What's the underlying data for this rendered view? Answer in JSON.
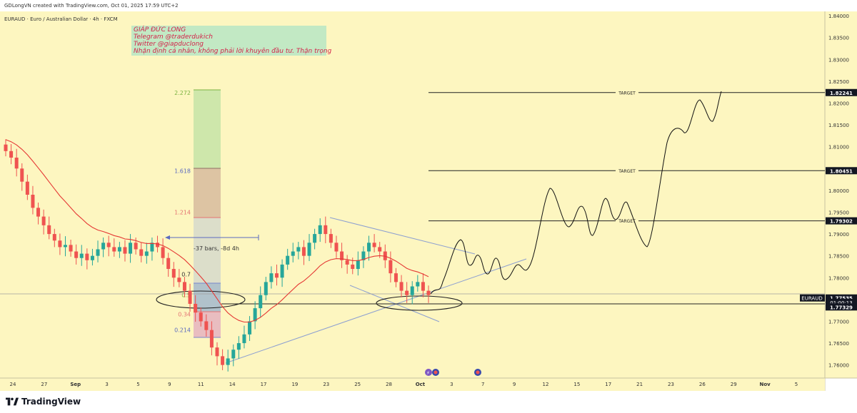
{
  "header": {
    "attribution": "GDLongVN created with TradingView.com, Oct 01, 2025 17:59 UTC+2",
    "symbol_line": "EURAUD · Euro / Australian Dollar · 4h · FXCM"
  },
  "annotation_note": {
    "lines": [
      "GIÁP ĐỨC LONG",
      "Telegram @traderdukich",
      "Twitter @giapduclong",
      "Nhận định cá nhân, không phải lời khuyên đầu tư. Thận trọng"
    ]
  },
  "branding": {
    "logo_text": "TradingView"
  },
  "colors": {
    "background": "#fdf6c0",
    "candle_up": "#26a69a",
    "candle_down": "#ef5350",
    "ma_line": "#e53935",
    "trend_line": "#8c9fd1",
    "target_line": "#222222",
    "price_tag": "#131722"
  },
  "chart_data": {
    "type": "candlestick",
    "symbol": "EURAUD",
    "timeframe": "4h",
    "y_ticks": [
      "1.84000",
      "1.83500",
      "1.83000",
      "1.82500",
      "1.82000",
      "1.81500",
      "1.81000",
      "1.80500",
      "1.80000",
      "1.79500",
      "1.79000",
      "1.78500",
      "1.78000",
      "1.77500",
      "1.77000",
      "1.76500",
      "1.76000"
    ],
    "ylim": [
      1.757,
      1.841
    ],
    "x_ticks": [
      "24",
      "27",
      "Sep",
      "3",
      "5",
      "9",
      "11",
      "14",
      "17",
      "19",
      "23",
      "25",
      "28",
      "Oct",
      "3",
      "7",
      "9",
      "12",
      "15",
      "17",
      "21",
      "23",
      "26",
      "29",
      "Nov",
      "5"
    ],
    "price_labels": [
      {
        "text": "1.82241",
        "value": 1.82241,
        "style": "target"
      },
      {
        "text": "1.80451",
        "value": 1.80451,
        "style": "target"
      },
      {
        "text": "1.79302",
        "value": 1.79302,
        "style": "target"
      },
      {
        "text": "1.77535",
        "value": 1.77535,
        "style": "last"
      },
      {
        "text": "01:00:13",
        "value": 1.77435,
        "style": "countdown"
      },
      {
        "text": "1.77329",
        "value": 1.77329,
        "style": "target"
      }
    ],
    "last_price_tag": "EURAUD",
    "target_lines": [
      {
        "label": "TARGET",
        "value": 1.82241
      },
      {
        "label": "TARGET",
        "value": 1.80451
      },
      {
        "label": "TARGET",
        "value": 1.79302
      }
    ],
    "fib_levels": [
      {
        "label": "2.272",
        "value": 1.8224
      },
      {
        "label": "1.618",
        "value": 1.8045
      },
      {
        "label": "1.214",
        "value": 1.795
      },
      {
        "label": "0.7",
        "value": 1.7808
      },
      {
        "label": "0.5",
        "value": 1.776
      },
      {
        "label": "0.34",
        "value": 1.7716
      },
      {
        "label": "0.214",
        "value": 1.768
      }
    ],
    "measure_label": "-37 bars, -8d 4h",
    "candle_closes": [
      1.809,
      1.8075,
      1.805,
      1.802,
      1.799,
      1.796,
      1.794,
      1.792,
      1.79,
      1.7885,
      1.787,
      1.7875,
      1.786,
      1.7845,
      1.7855,
      1.784,
      1.785,
      1.7865,
      1.788,
      1.787,
      1.786,
      1.787,
      1.7855,
      1.788,
      1.7865,
      1.785,
      1.786,
      1.788,
      1.787,
      1.7845,
      1.782,
      1.78,
      1.779,
      1.777,
      1.774,
      1.772,
      1.77,
      1.768,
      1.764,
      1.762,
      1.76,
      1.7615,
      1.7635,
      1.765,
      1.767,
      1.77,
      1.773,
      1.776,
      1.779,
      1.781,
      1.78,
      1.783,
      1.785,
      1.786,
      1.787,
      1.785,
      1.788,
      1.79,
      1.792,
      1.79,
      1.788,
      1.786,
      1.784,
      1.783,
      1.782,
      1.784,
      1.786,
      1.788,
      1.787,
      1.786,
      1.784,
      1.781,
      1.779,
      1.777,
      1.776,
      1.778,
      1.779,
      1.777,
      1.776
    ]
  }
}
